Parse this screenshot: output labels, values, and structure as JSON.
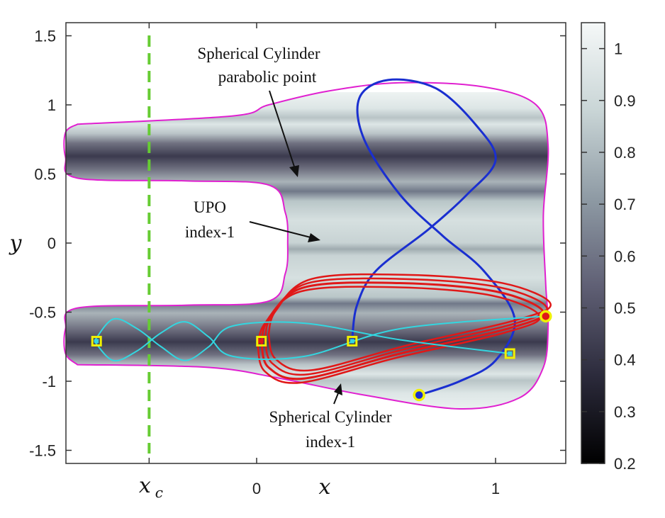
{
  "chart_data": {
    "type": "line",
    "xlabel": "x",
    "ylabel": "y",
    "xlim": [
      -0.8,
      1.3
    ],
    "ylim": [
      -1.6,
      1.6
    ],
    "x_ticks": [
      {
        "value": -0.45,
        "label": "x_c",
        "main": "x",
        "sub": "c"
      },
      {
        "value": 0,
        "label": "0"
      },
      {
        "value": 1,
        "label": "1"
      }
    ],
    "y_ticks": [
      {
        "value": 1.5,
        "label": "1.5"
      },
      {
        "value": 1,
        "label": "1"
      },
      {
        "value": 0.5,
        "label": "0.5"
      },
      {
        "value": 0,
        "label": "0"
      },
      {
        "value": -0.5,
        "label": "-0.5"
      },
      {
        "value": -1,
        "label": "-1"
      },
      {
        "value": -1.5,
        "label": "-1.5"
      }
    ],
    "colorbar": {
      "range": [
        0.2,
        1.05
      ],
      "ticks": [
        "0.2",
        "0.3",
        "0.4",
        "0.5",
        "0.6",
        "0.7",
        "0.8",
        "0.9",
        "1"
      ],
      "colors": [
        "#000000",
        "#303040",
        "#6a6a80",
        "#a3b0b8",
        "#d2dcdc",
        "#f4f6f6"
      ]
    },
    "background": "heatmap of a scalar field over the energy surface region",
    "boundary_color": "#e020d0",
    "xc_line": {
      "x": -0.45,
      "color": "#66cc33",
      "style": "dashed"
    },
    "series": [
      {
        "kind": "blue-orbit",
        "color": "#1a2fd0",
        "points": [
          [
            0.68,
            -1.1
          ],
          [
            0.85,
            -1.0
          ],
          [
            1.0,
            -0.85
          ],
          [
            1.08,
            -0.55
          ],
          [
            0.95,
            -0.2
          ],
          [
            0.78,
            0.05
          ],
          [
            0.6,
            0.35
          ],
          [
            0.45,
            0.75
          ],
          [
            0.43,
            1.05
          ],
          [
            0.55,
            1.18
          ],
          [
            0.75,
            1.12
          ],
          [
            0.92,
            0.85
          ],
          [
            1.0,
            0.6
          ],
          [
            0.88,
            0.35
          ],
          [
            0.72,
            0.1
          ],
          [
            0.5,
            -0.2
          ],
          [
            0.42,
            -0.45
          ],
          [
            0.4,
            -0.7
          ]
        ]
      },
      {
        "kind": "red-orbit",
        "color": "#e01818",
        "points": [
          [
            0.02,
            -0.72
          ],
          [
            0.05,
            -0.55
          ],
          [
            0.2,
            -0.32
          ],
          [
            0.6,
            -0.29
          ],
          [
            1.0,
            -0.35
          ],
          [
            1.2,
            -0.5
          ],
          [
            1.05,
            -0.62
          ],
          [
            0.6,
            -0.8
          ],
          [
            0.2,
            -0.98
          ],
          [
            0.05,
            -0.9
          ],
          [
            0.02,
            -0.72
          ]
        ]
      },
      {
        "kind": "cyan-trajectories",
        "color": "#33d6e0",
        "points": [
          [
            -0.68,
            -0.71
          ],
          [
            -0.6,
            -0.55
          ],
          [
            -0.5,
            -0.62
          ],
          [
            -0.4,
            -0.75
          ],
          [
            -0.3,
            -0.85
          ],
          [
            -0.2,
            -0.75
          ],
          [
            -0.1,
            -0.6
          ],
          [
            0.2,
            -0.58
          ],
          [
            0.6,
            -0.7
          ],
          [
            1.06,
            -0.8
          ]
        ]
      }
    ],
    "markers": [
      {
        "x": -0.67,
        "y": -0.71,
        "shape": "square",
        "color": "#33d6e0",
        "edge": "#f0f000"
      },
      {
        "x": 0.02,
        "y": -0.71,
        "shape": "square",
        "color": "#e01818",
        "edge": "#f0f000"
      },
      {
        "x": 0.4,
        "y": -0.71,
        "shape": "square",
        "color": "#33d6e0",
        "edge": "#f0f000"
      },
      {
        "x": 1.06,
        "y": -0.8,
        "shape": "square",
        "color": "#33d6e0",
        "edge": "#f0f000"
      },
      {
        "x": 1.21,
        "y": -0.53,
        "shape": "circle",
        "color": "#e01818",
        "edge": "#f0f000"
      },
      {
        "x": 0.68,
        "y": -1.1,
        "shape": "circle",
        "color": "#1a2fd0",
        "edge": "#f0f000"
      }
    ],
    "annotations": [
      {
        "lines": [
          "Spherical Cylinder",
          "parabolic point"
        ],
        "target": [
          0.17,
          0.48
        ]
      },
      {
        "lines": [
          "UPO",
          "index-1"
        ],
        "target": [
          0.26,
          0.0
        ]
      },
      {
        "lines": [
          "Spherical Cylinder",
          "index-1"
        ],
        "target": [
          0.35,
          -1.03
        ]
      }
    ]
  }
}
